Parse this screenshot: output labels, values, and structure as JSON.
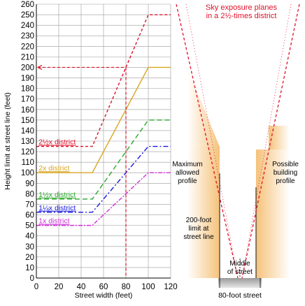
{
  "colors": {
    "red": "#e0102a",
    "gold": "#d9a520",
    "green": "#2aa82a",
    "blue": "#1818e0",
    "magenta": "#d030d8",
    "orange_fill": "#f7c982",
    "dark_gray": "#555555",
    "light_gray": "#c8c8c8"
  },
  "chart_data": {
    "type": "line",
    "xlabel": "Street width (feet)",
    "ylabel": "Height limit at street line (feet)",
    "xlim": [
      0,
      120
    ],
    "ylim": [
      0,
      260
    ],
    "xticks": [
      0,
      20,
      40,
      60,
      80,
      100,
      120
    ],
    "yticks": [
      0,
      10,
      20,
      30,
      40,
      50,
      60,
      70,
      80,
      90,
      100,
      110,
      120,
      130,
      140,
      150,
      160,
      170,
      180,
      190,
      200,
      210,
      220,
      230,
      240,
      250,
      260
    ],
    "series": [
      {
        "name": "2½x district",
        "color": "red",
        "dash": "4,3",
        "x": [
          0,
          50,
          100,
          120
        ],
        "y": [
          125,
          125,
          250,
          250
        ]
      },
      {
        "name": "2x district",
        "color": "gold",
        "dash": "",
        "x": [
          0,
          50,
          100,
          120
        ],
        "y": [
          100,
          100,
          200,
          200
        ]
      },
      {
        "name": "1½x district",
        "color": "green",
        "dash": "7,4",
        "x": [
          0,
          50,
          100,
          120
        ],
        "y": [
          75,
          75,
          150,
          150
        ]
      },
      {
        "name": "1¼x district",
        "color": "blue",
        "dash": "7,3,2,3",
        "x": [
          0,
          50,
          100,
          120
        ],
        "y": [
          62.5,
          62.5,
          125,
          125
        ]
      },
      {
        "name": "1x district",
        "color": "magenta",
        "dash": "6,2,2,2",
        "x": [
          0,
          50,
          100,
          120
        ],
        "y": [
          50,
          50,
          100,
          100
        ]
      }
    ],
    "annotations": [
      {
        "type": "vline",
        "x": 80,
        "y_top": 200,
        "color": "red"
      },
      {
        "type": "hline",
        "y": 200,
        "x_right": 80,
        "color": "red",
        "arrow_left": true
      }
    ]
  },
  "diagram": {
    "title_line1": "Sky exposure planes",
    "title_line2": "in a 2½-times district",
    "label_max_profile": [
      "Maximum",
      "allowed",
      "profile"
    ],
    "label_possible_profile": [
      "Possible",
      "building",
      "profile"
    ],
    "label_foot_limit": [
      "200-foot",
      "limit at",
      "street line"
    ],
    "label_middle": [
      "Middle",
      "of street"
    ],
    "street_label": "80-foot street"
  }
}
